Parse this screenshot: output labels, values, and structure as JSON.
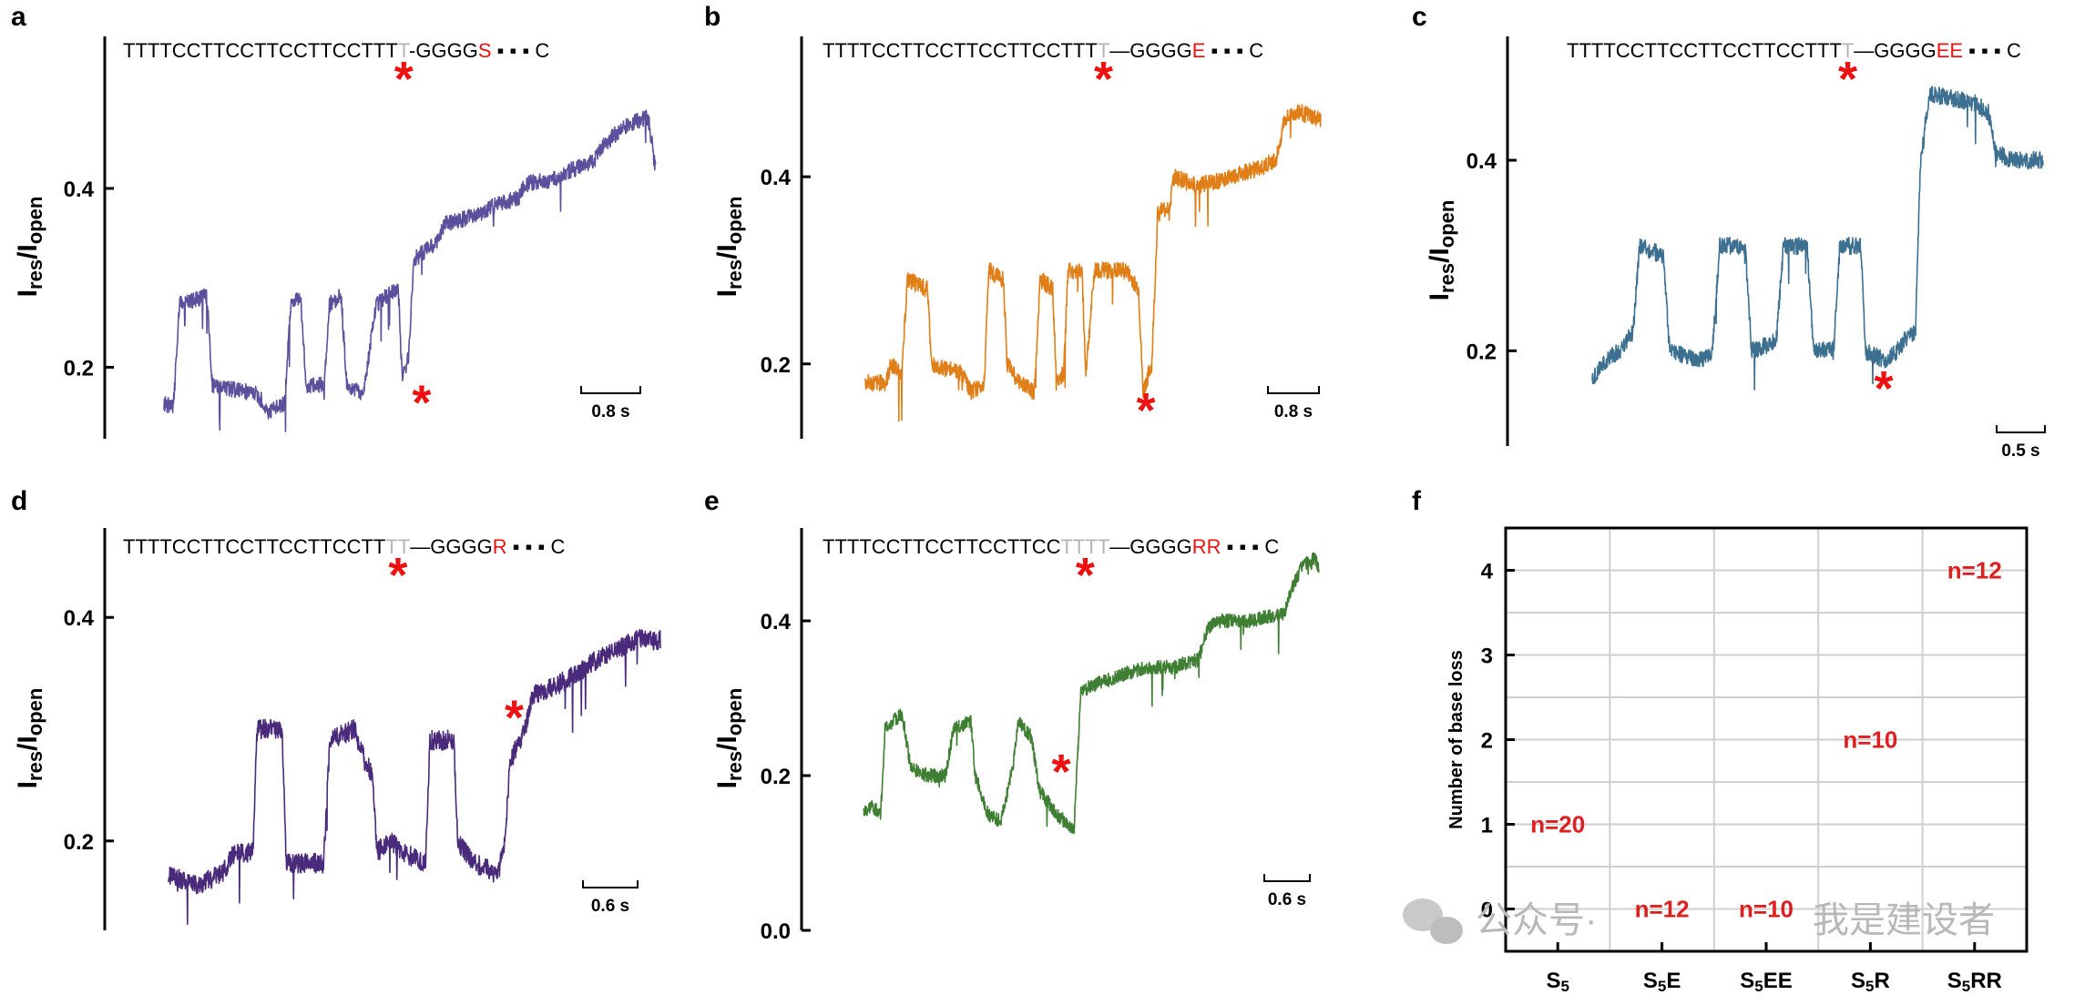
{
  "chart_data": [
    {
      "panel": "a",
      "type": "line",
      "color": "#5a509c",
      "sequence": {
        "dark": "TTTTCCTTCCTTCCTTCCTTT",
        "grey": "T",
        "link": "-GGGG",
        "red": "S",
        "tail": "C"
      },
      "ylabel_main": "I",
      "ylabel_sub1": "res",
      "ylabel_mid": "/I",
      "ylabel_sub2": "open",
      "ylim": [
        0.12,
        0.57
      ],
      "yticks": [
        0.2,
        0.4
      ],
      "ytick_labels": [
        "0.2",
        "0.4"
      ],
      "scale_bar": "0.8 s",
      "duration": 4.65,
      "trace": [
        [
          0.0,
          0.16
        ],
        [
          0.12,
          0.155
        ],
        [
          0.2,
          0.27
        ],
        [
          0.55,
          0.28
        ],
        [
          0.62,
          0.18
        ],
        [
          1.2,
          0.17
        ],
        [
          1.33,
          0.15
        ],
        [
          1.55,
          0.16
        ],
        [
          1.62,
          0.27
        ],
        [
          1.75,
          0.28
        ],
        [
          1.82,
          0.18
        ],
        [
          2.05,
          0.18
        ],
        [
          2.12,
          0.27
        ],
        [
          2.27,
          0.28
        ],
        [
          2.34,
          0.18
        ],
        [
          2.55,
          0.17
        ],
        [
          2.72,
          0.27
        ],
        [
          3.0,
          0.29
        ],
        [
          3.05,
          0.19
        ],
        [
          3.13,
          0.21
        ],
        [
          3.2,
          0.32
        ],
        [
          3.5,
          0.34
        ],
        [
          3.6,
          0.36
        ],
        [
          4.0,
          0.37
        ],
        [
          4.2,
          0.38
        ],
        [
          4.55,
          0.39
        ],
        [
          4.62,
          0.405
        ],
        [
          5.0,
          0.41
        ],
        [
          5.2,
          0.42
        ],
        [
          5.5,
          0.43
        ],
        [
          5.65,
          0.45
        ],
        [
          5.9,
          0.47
        ],
        [
          6.2,
          0.48
        ],
        [
          6.3,
          0.42
        ]
      ],
      "stars": [
        {
          "pos": "sequence"
        },
        {
          "x": 3.3,
          "y": 0.16
        }
      ]
    },
    {
      "panel": "b",
      "type": "line",
      "color": "#e07e18",
      "sequence": {
        "dark": "TTTTCCTTCCTTCCTTCCTTT",
        "grey": "T",
        "link": "—GGGG",
        "red": "E",
        "tail": "C"
      },
      "ylabel_main": "I",
      "ylabel_sub1": "res",
      "ylabel_mid": "/I",
      "ylabel_sub2": "open",
      "ylim": [
        0.12,
        0.55
      ],
      "yticks": [
        0.2,
        0.4
      ],
      "ytick_labels": [
        "0.2",
        "0.4"
      ],
      "scale_bar": "0.8 s",
      "duration": 4.4,
      "trace": [
        [
          0.0,
          0.18
        ],
        [
          0.28,
          0.18
        ],
        [
          0.35,
          0.2
        ],
        [
          0.5,
          0.19
        ],
        [
          0.57,
          0.29
        ],
        [
          0.85,
          0.28
        ],
        [
          0.9,
          0.2
        ],
        [
          1.3,
          0.19
        ],
        [
          1.45,
          0.17
        ],
        [
          1.62,
          0.18
        ],
        [
          1.68,
          0.3
        ],
        [
          1.88,
          0.29
        ],
        [
          1.93,
          0.2
        ],
        [
          2.1,
          0.18
        ],
        [
          2.3,
          0.17
        ],
        [
          2.38,
          0.29
        ],
        [
          2.55,
          0.28
        ],
        [
          2.6,
          0.18
        ],
        [
          2.7,
          0.19
        ],
        [
          2.76,
          0.3
        ],
        [
          2.95,
          0.3
        ],
        [
          3.0,
          0.19
        ],
        [
          3.12,
          0.3
        ],
        [
          3.55,
          0.3
        ],
        [
          3.72,
          0.28
        ],
        [
          3.78,
          0.17
        ],
        [
          3.9,
          0.2
        ],
        [
          3.98,
          0.36
        ],
        [
          4.15,
          0.37
        ],
        [
          4.2,
          0.4
        ],
        [
          4.5,
          0.39
        ],
        [
          5.0,
          0.4
        ],
        [
          5.4,
          0.41
        ],
        [
          5.6,
          0.42
        ],
        [
          5.7,
          0.46
        ],
        [
          5.9,
          0.47
        ],
        [
          6.2,
          0.46
        ]
      ],
      "stars": [
        {
          "pos": "sequence"
        },
        {
          "x": 3.82,
          "y": 0.15
        }
      ]
    },
    {
      "panel": "c",
      "type": "line",
      "color": "#3d7090",
      "sequence": {
        "dark": "TTTTCCTTCCTTCCTTCCTTT",
        "grey": "T",
        "link": "—GGGG",
        "red": "EE",
        "tail": "C"
      },
      "ylabel_main": "I",
      "ylabel_sub1": "res",
      "ylabel_mid": "/I",
      "ylabel_sub2": "open",
      "ylim": [
        0.1,
        0.53
      ],
      "yticks": [
        0.2,
        0.4
      ],
      "ytick_labels": [
        "0.2",
        "0.4"
      ],
      "scale_bar": "0.5 s",
      "duration": 3.0,
      "trace": [
        [
          0.0,
          0.17
        ],
        [
          0.15,
          0.19
        ],
        [
          0.3,
          0.2
        ],
        [
          0.45,
          0.22
        ],
        [
          0.52,
          0.31
        ],
        [
          0.78,
          0.3
        ],
        [
          0.85,
          0.2
        ],
        [
          1.2,
          0.19
        ],
        [
          1.32,
          0.2
        ],
        [
          1.4,
          0.31
        ],
        [
          1.68,
          0.31
        ],
        [
          1.75,
          0.2
        ],
        [
          2.02,
          0.21
        ],
        [
          2.1,
          0.31
        ],
        [
          2.36,
          0.31
        ],
        [
          2.43,
          0.2
        ],
        [
          2.65,
          0.2
        ],
        [
          2.72,
          0.31
        ],
        [
          2.95,
          0.31
        ],
        [
          3.0,
          0.2
        ],
        [
          3.2,
          0.19
        ],
        [
          3.35,
          0.2
        ],
        [
          3.42,
          0.21
        ],
        [
          3.55,
          0.22
        ],
        [
          3.6,
          0.39
        ],
        [
          3.66,
          0.44
        ],
        [
          3.7,
          0.47
        ],
        [
          4.2,
          0.46
        ],
        [
          4.35,
          0.45
        ],
        [
          4.42,
          0.41
        ],
        [
          4.6,
          0.4
        ],
        [
          4.95,
          0.4
        ]
      ],
      "stars": [
        {
          "pos": "sequence"
        },
        {
          "x": 3.2,
          "y": 0.16
        }
      ]
    },
    {
      "panel": "d",
      "type": "line",
      "color": "#4a2a7a",
      "sequence": {
        "dark": "TTTTCCTTCCTTCCTTCCTT",
        "grey": "TT",
        "link": "—GGGG",
        "red": "R",
        "tail": "C"
      },
      "ylabel_main": "I",
      "ylabel_sub1": "res",
      "ylabel_mid": "/I",
      "ylabel_sub2": "open",
      "ylim": [
        0.12,
        0.48
      ],
      "yticks": [
        0.2,
        0.4
      ],
      "ytick_labels": [
        "0.2",
        "0.4"
      ],
      "scale_bar": "0.6 s",
      "duration": 3.55,
      "trace": [
        [
          0.0,
          0.17
        ],
        [
          0.3,
          0.16
        ],
        [
          0.6,
          0.17
        ],
        [
          0.75,
          0.19
        ],
        [
          0.95,
          0.19
        ],
        [
          1.0,
          0.3
        ],
        [
          1.28,
          0.3
        ],
        [
          1.33,
          0.18
        ],
        [
          1.75,
          0.18
        ],
        [
          1.82,
          0.29
        ],
        [
          2.1,
          0.3
        ],
        [
          2.22,
          0.27
        ],
        [
          2.3,
          0.26
        ],
        [
          2.35,
          0.19
        ],
        [
          2.5,
          0.2
        ],
        [
          2.65,
          0.19
        ],
        [
          2.9,
          0.18
        ],
        [
          2.95,
          0.29
        ],
        [
          3.22,
          0.29
        ],
        [
          3.26,
          0.2
        ],
        [
          3.45,
          0.18
        ],
        [
          3.72,
          0.17
        ],
        [
          3.8,
          0.2
        ],
        [
          3.85,
          0.27
        ],
        [
          4.02,
          0.3
        ],
        [
          4.1,
          0.33
        ],
        [
          4.4,
          0.34
        ],
        [
          4.6,
          0.35
        ],
        [
          4.8,
          0.36
        ],
        [
          5.0,
          0.37
        ],
        [
          5.3,
          0.38
        ],
        [
          5.55,
          0.38
        ]
      ],
      "stars": [
        {
          "pos": "sequence"
        },
        {
          "x": 3.9,
          "y": 0.31
        }
      ]
    },
    {
      "panel": "e",
      "type": "line",
      "color": "#3f7f33",
      "sequence": {
        "dark": "TTTTCCTTCCTTCCTTCC",
        "grey": "TTTT",
        "link": "—GGGG",
        "red": "RR",
        "tail": "C"
      },
      "ylabel_main": "I",
      "ylabel_sub1": "res",
      "ylabel_mid": "/I",
      "ylabel_sub2": "open",
      "ylim": [
        0.0,
        0.52
      ],
      "yticks": [
        0.0,
        0.2,
        0.4
      ],
      "ytick_labels": [
        "0.0",
        "0.2",
        "0.4"
      ],
      "scale_bar": "0.6 s",
      "duration": 3.6,
      "trace": [
        [
          0.0,
          0.15
        ],
        [
          0.1,
          0.16
        ],
        [
          0.2,
          0.15
        ],
        [
          0.25,
          0.26
        ],
        [
          0.35,
          0.27
        ],
        [
          0.45,
          0.28
        ],
        [
          0.55,
          0.21
        ],
        [
          0.75,
          0.2
        ],
        [
          0.95,
          0.2
        ],
        [
          1.05,
          0.26
        ],
        [
          1.25,
          0.27
        ],
        [
          1.3,
          0.2
        ],
        [
          1.45,
          0.15
        ],
        [
          1.6,
          0.14
        ],
        [
          1.75,
          0.22
        ],
        [
          1.8,
          0.27
        ],
        [
          1.95,
          0.25
        ],
        [
          2.05,
          0.18
        ],
        [
          2.25,
          0.15
        ],
        [
          2.45,
          0.13
        ],
        [
          2.53,
          0.31
        ],
        [
          2.75,
          0.32
        ],
        [
          3.0,
          0.33
        ],
        [
          3.3,
          0.34
        ],
        [
          3.6,
          0.34
        ],
        [
          3.9,
          0.35
        ],
        [
          4.0,
          0.39
        ],
        [
          4.15,
          0.4
        ],
        [
          4.5,
          0.4
        ],
        [
          4.9,
          0.41
        ],
        [
          4.98,
          0.44
        ],
        [
          5.1,
          0.47
        ],
        [
          5.25,
          0.48
        ],
        [
          5.3,
          0.47
        ]
      ],
      "stars": [
        {
          "pos": "sequence"
        },
        {
          "x": 2.3,
          "y": 0.205
        }
      ]
    },
    {
      "panel": "f",
      "type": "scatter",
      "ylabel": "Number of base loss",
      "categories": [
        {
          "main": "S",
          "sub": "5",
          "suffix": ""
        },
        {
          "main": "S",
          "sub": "5",
          "suffix": "E"
        },
        {
          "main": "S",
          "sub": "5",
          "suffix": "EE"
        },
        {
          "main": "S",
          "sub": "5",
          "suffix": "R"
        },
        {
          "main": "S",
          "sub": "5",
          "suffix": "RR"
        }
      ],
      "ylim": [
        -0.5,
        4.5
      ],
      "yticks": [
        0,
        1,
        2,
        3,
        4
      ],
      "ytick_labels": [
        "0",
        "1",
        "2",
        "3",
        "4"
      ],
      "grid": true,
      "points": [
        {
          "category": 0,
          "value": 1,
          "label": "n=20"
        },
        {
          "category": 1,
          "value": 0,
          "label": "n=12"
        },
        {
          "category": 2,
          "value": 0,
          "label": "n=10"
        },
        {
          "category": 3,
          "value": 2,
          "label": "n=10"
        },
        {
          "category": 4,
          "value": 4,
          "label": "n=12"
        }
      ],
      "legend": "none"
    }
  ],
  "watermark": {
    "line1": "公众号·",
    "line2": "我是建设者"
  }
}
